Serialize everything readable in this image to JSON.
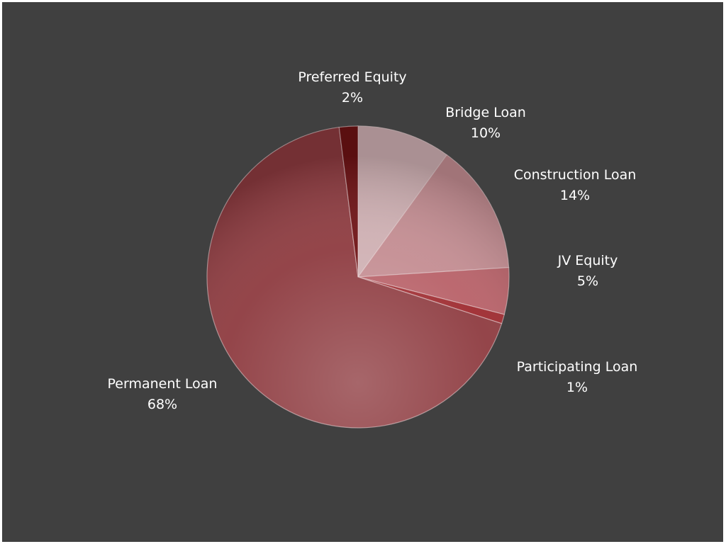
{
  "chart_data": {
    "type": "pie",
    "start_angle_deg": 0,
    "direction": "clockwise",
    "slices": [
      {
        "label": "Bridge Loan",
        "value": 10,
        "value_label": "10%",
        "color": "#cfb0b3"
      },
      {
        "label": "Construction Loan",
        "value": 14,
        "value_label": "14%",
        "color": "#c48d92"
      },
      {
        "label": "JV Equity",
        "value": 5,
        "value_label": "5%",
        "color": "#b86168"
      },
      {
        "label": "Participating Loan",
        "value": 1,
        "value_label": "1%",
        "color": "#9e2a2f"
      },
      {
        "label": "Permanent Loan",
        "value": 68,
        "value_label": "68%",
        "color": "#8e3b40"
      },
      {
        "label": "Preferred Equity",
        "value": 2,
        "value_label": "2%",
        "color": "#6e1214"
      }
    ],
    "background_color": "#404040",
    "label_color": "#ffffff",
    "legend": "none"
  }
}
